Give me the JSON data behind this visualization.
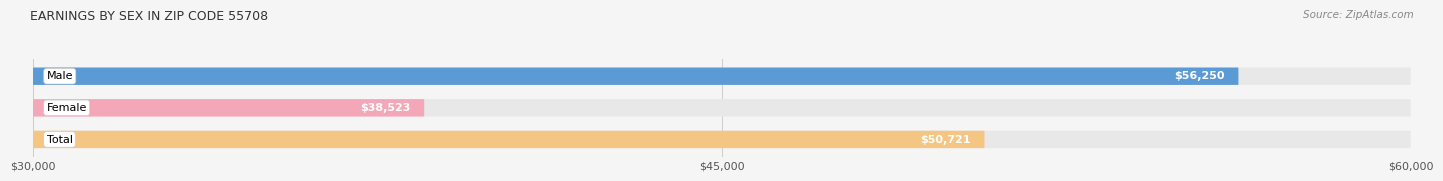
{
  "title": "EARNINGS BY SEX IN ZIP CODE 55708",
  "source": "Source: ZipAtlas.com",
  "categories": [
    "Male",
    "Female",
    "Total"
  ],
  "values": [
    56250,
    38523,
    50721
  ],
  "bar_colors": [
    "#5b9bd5",
    "#f4a7b9",
    "#f5c583"
  ],
  "bar_labels": [
    "$56,250",
    "$38,523",
    "$50,721"
  ],
  "x_min": 30000,
  "x_max": 60000,
  "x_ticks": [
    30000,
    45000,
    60000
  ],
  "x_tick_labels": [
    "$30,000",
    "$45,000",
    "$60,000"
  ],
  "bg_color": "#f5f5f5",
  "bar_bg_color": "#e8e8e8",
  "title_fontsize": 9,
  "label_fontsize": 8,
  "tick_fontsize": 8
}
